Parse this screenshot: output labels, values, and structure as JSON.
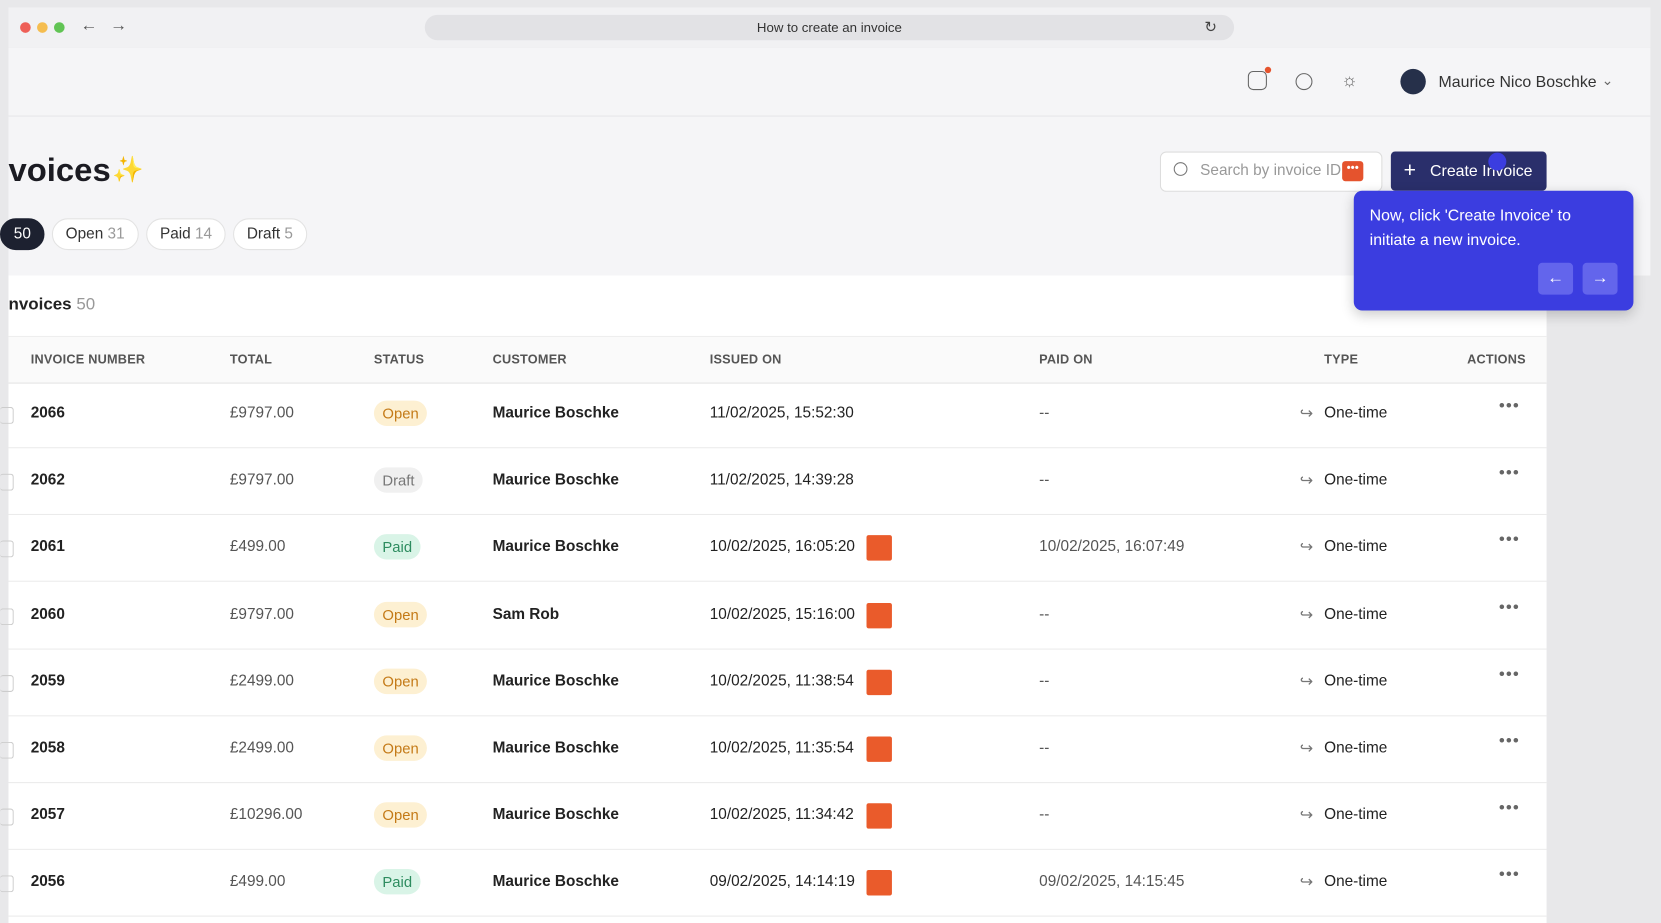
{
  "browser": {
    "tab_title": "How to create an invoice"
  },
  "header": {
    "user_name": "Maurice Nico Boschke"
  },
  "page": {
    "title": "voices",
    "search_placeholder": "Search by invoice ID",
    "create_button": "Create Invoice",
    "filters": [
      {
        "label": null,
        "count": "50"
      },
      {
        "label": "Open",
        "count": "31"
      },
      {
        "label": "Paid",
        "count": "14"
      },
      {
        "label": "Draft",
        "count": "5"
      }
    ],
    "section_title": "nvoices",
    "section_count": "50"
  },
  "tooltip": {
    "text": "Now, click 'Create Invoice' to initiate a new invoice."
  },
  "table": {
    "columns": [
      "INVOICE NUMBER",
      "TOTAL",
      "STATUS",
      "CUSTOMER",
      "ISSUED ON",
      "PAID ON",
      "TYPE",
      "ACTIONS"
    ],
    "rows": [
      [
        "2066",
        "£9797.00",
        "Open",
        "Maurice Boschke",
        "11/02/2025, 15:52:30",
        "--",
        "One-time"
      ],
      [
        "2062",
        "£9797.00",
        "Draft",
        "Maurice Boschke",
        "11/02/2025, 14:39:28",
        "--",
        "One-time"
      ],
      [
        "2061",
        "£499.00",
        "Paid",
        "Maurice Boschke",
        "10/02/2025, 16:05:20",
        "10/02/2025, 16:07:49",
        "One-time"
      ],
      [
        "2060",
        "£9797.00",
        "Open",
        "Sam Rob",
        "10/02/2025, 15:16:00",
        "--",
        "One-time"
      ],
      [
        "2059",
        "£2499.00",
        "Open",
        "Maurice Boschke",
        "10/02/2025, 11:38:54",
        "--",
        "One-time"
      ],
      [
        "2058",
        "£2499.00",
        "Open",
        "Maurice Boschke",
        "10/02/2025, 11:35:54",
        "--",
        "One-time"
      ],
      [
        "2057",
        "£10296.00",
        "Open",
        "Maurice Boschke",
        "10/02/2025, 11:34:42",
        "--",
        "One-time"
      ],
      [
        "2056",
        "£499.00",
        "Paid",
        "Maurice Boschke",
        "09/02/2025, 14:14:19",
        "09/02/2025, 14:15:45",
        "One-time"
      ]
    ],
    "hubspot": [
      false,
      false,
      true,
      true,
      true,
      true,
      true,
      true
    ]
  }
}
